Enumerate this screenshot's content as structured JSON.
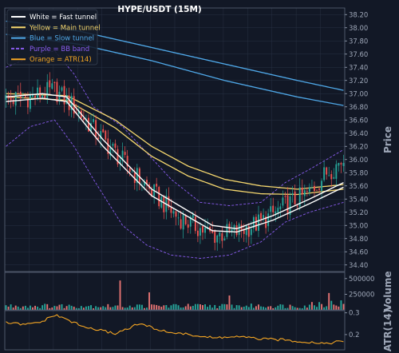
{
  "chart_data": {
    "type": "candlestick",
    "title": "HYPE/USDT (15M)",
    "legend": {
      "placement": "top-left",
      "items": [
        {
          "label": "White = Fast tunnel",
          "color": "#ffffff",
          "dash": false
        },
        {
          "label": "Yellow = Main tunnel",
          "color": "#f5d76e",
          "dash": false
        },
        {
          "label": "Blue = Slow tunnel",
          "color": "#4fa8e8",
          "dash": false
        },
        {
          "label": "Purple = BB band",
          "color": "#8a5cf0",
          "dash": true
        },
        {
          "label": "Orange = ATR(14)",
          "color": "#f5a623",
          "dash": false
        }
      ]
    },
    "colors": {
      "background": "#121826",
      "grid": "#273042",
      "up": "#26a69a",
      "down": "#ef5350",
      "volume_up": "#26a69a",
      "volume_down": "#e57373",
      "fast": "#ffffff",
      "main": "#f5d76e",
      "slow": "#4fa8e8",
      "bb": "#8a5cf0",
      "atr": "#f5a623"
    },
    "panels": {
      "price": {
        "ylabel": "Price",
        "ylim": [
          34.3,
          38.3
        ],
        "ticks": [
          34.4,
          34.6,
          34.8,
          35.0,
          35.2,
          35.4,
          35.6,
          35.8,
          36.0,
          36.2,
          36.4,
          36.6,
          36.8,
          37.0,
          37.2,
          37.4,
          37.6,
          37.8,
          38.0,
          38.2
        ],
        "tick_labels": [
          "34.40",
          "34.60",
          "34.80",
          "35.00",
          "35.20",
          "35.40",
          "35.60",
          "35.80",
          "36.00",
          "36.20",
          "36.40",
          "36.60",
          "36.80",
          "37.00",
          "37.20",
          "37.40",
          "37.60",
          "37.80",
          "38.00",
          "38.20"
        ],
        "grid": true
      },
      "volume": {
        "ylabel": "Volume",
        "ylim": [
          0,
          600000
        ],
        "ticks": [
          250000,
          500000
        ],
        "tick_labels": [
          "250000",
          "500000"
        ]
      },
      "atr": {
        "ylabel": "ATR(14)",
        "ylim": [
          0.13,
          0.31
        ],
        "ticks": [
          0.2,
          0.3
        ],
        "tick_labels": [
          "0.2",
          "0.3"
        ]
      }
    },
    "bars": 140,
    "close_path": [
      [
        0,
        36.9
      ],
      [
        10,
        36.95
      ],
      [
        20,
        37.05
      ],
      [
        28,
        36.8
      ],
      [
        40,
        36.3
      ],
      [
        55,
        35.7
      ],
      [
        70,
        35.15
      ],
      [
        85,
        34.85
      ],
      [
        95,
        34.9
      ],
      [
        105,
        35.05
      ],
      [
        115,
        35.3
      ],
      [
        125,
        35.5
      ],
      [
        132,
        35.8
      ],
      [
        139,
        36.0
      ]
    ],
    "series_anchors": {
      "fast_upper": [
        [
          0,
          36.95
        ],
        [
          15,
          37.0
        ],
        [
          25,
          36.95
        ],
        [
          40,
          36.3
        ],
        [
          60,
          35.55
        ],
        [
          85,
          35.0
        ],
        [
          95,
          34.95
        ],
        [
          110,
          35.15
        ],
        [
          125,
          35.4
        ],
        [
          139,
          35.65
        ]
      ],
      "fast_lower": [
        [
          0,
          36.88
        ],
        [
          15,
          36.93
        ],
        [
          25,
          36.88
        ],
        [
          40,
          36.2
        ],
        [
          60,
          35.45
        ],
        [
          85,
          34.92
        ],
        [
          95,
          34.9
        ],
        [
          110,
          35.08
        ],
        [
          125,
          35.33
        ],
        [
          139,
          35.58
        ]
      ],
      "main_upper": [
        [
          0,
          37.0
        ],
        [
          25,
          36.97
        ],
        [
          45,
          36.6
        ],
        [
          60,
          36.2
        ],
        [
          75,
          35.9
        ],
        [
          90,
          35.7
        ],
        [
          105,
          35.6
        ],
        [
          120,
          35.55
        ],
        [
          139,
          35.62
        ]
      ],
      "main_lower": [
        [
          0,
          36.95
        ],
        [
          25,
          36.9
        ],
        [
          45,
          36.48
        ],
        [
          60,
          36.05
        ],
        [
          75,
          35.75
        ],
        [
          90,
          35.55
        ],
        [
          105,
          35.48
        ],
        [
          120,
          35.47
        ],
        [
          139,
          35.55
        ]
      ],
      "slow_upper": [
        [
          0,
          38.1
        ],
        [
          30,
          37.95
        ],
        [
          60,
          37.7
        ],
        [
          90,
          37.45
        ],
        [
          120,
          37.2
        ],
        [
          139,
          37.05
        ]
      ],
      "slow_lower": [
        [
          0,
          37.9
        ],
        [
          30,
          37.75
        ],
        [
          60,
          37.5
        ],
        [
          90,
          37.2
        ],
        [
          120,
          36.95
        ],
        [
          139,
          36.82
        ]
      ],
      "bb_upper": [
        [
          0,
          37.4
        ],
        [
          10,
          37.55
        ],
        [
          20,
          37.65
        ],
        [
          28,
          37.3
        ],
        [
          36,
          36.8
        ],
        [
          48,
          36.5
        ],
        [
          58,
          36.1
        ],
        [
          68,
          35.7
        ],
        [
          80,
          35.35
        ],
        [
          92,
          35.3
        ],
        [
          105,
          35.35
        ],
        [
          115,
          35.65
        ],
        [
          125,
          35.85
        ],
        [
          139,
          36.15
        ]
      ],
      "bb_lower": [
        [
          0,
          36.2
        ],
        [
          10,
          36.5
        ],
        [
          20,
          36.6
        ],
        [
          28,
          36.2
        ],
        [
          36,
          35.7
        ],
        [
          48,
          35.0
        ],
        [
          58,
          34.7
        ],
        [
          68,
          34.55
        ],
        [
          80,
          34.5
        ],
        [
          92,
          34.55
        ],
        [
          105,
          34.75
        ],
        [
          115,
          35.05
        ],
        [
          125,
          35.2
        ],
        [
          139,
          35.35
        ]
      ],
      "atr": [
        [
          0,
          0.255
        ],
        [
          8,
          0.245
        ],
        [
          15,
          0.26
        ],
        [
          20,
          0.29
        ],
        [
          25,
          0.27
        ],
        [
          32,
          0.235
        ],
        [
          45,
          0.205
        ],
        [
          55,
          0.25
        ],
        [
          65,
          0.215
        ],
        [
          75,
          0.2
        ],
        [
          85,
          0.185
        ],
        [
          95,
          0.19
        ],
        [
          105,
          0.18
        ],
        [
          115,
          0.175
        ],
        [
          125,
          0.165
        ],
        [
          132,
          0.16
        ],
        [
          139,
          0.17
        ]
      ]
    },
    "volume_levels": {
      "baseline": 70000,
      "spike_bars": [
        47,
        59,
        92,
        133
      ],
      "spike_values": [
        470000,
        280000,
        230000,
        270000
      ]
    }
  }
}
